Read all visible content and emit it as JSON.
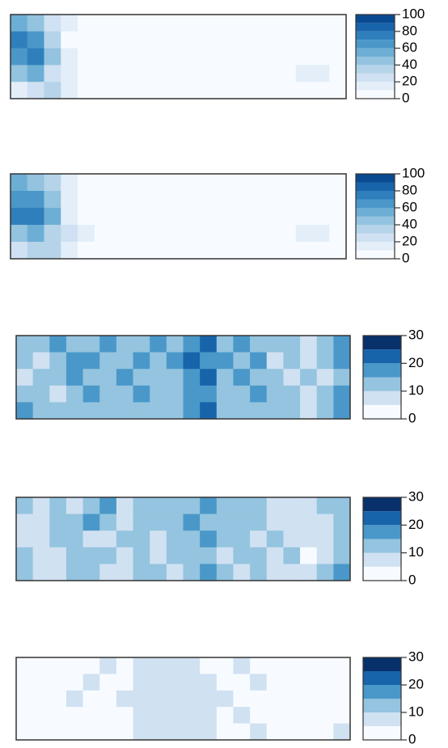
{
  "chart_data": [
    {
      "type": "raster",
      "zlim": [
        0,
        100
      ],
      "zticks": [
        0,
        20,
        40,
        60,
        80,
        100
      ],
      "breaks": [
        0,
        10,
        20,
        30,
        40,
        50,
        60,
        70,
        80,
        90,
        100
      ],
      "colors": [
        "#f7fbff",
        "#e3eef9",
        "#cfe1f2",
        "#b5d4e9",
        "#93c3df",
        "#6daed5",
        "#4b97c9",
        "#2f7fbc",
        "#1864aa",
        "#0a4a90"
      ],
      "z": [
        [
          55,
          40,
          25,
          10,
          4,
          2,
          2,
          2,
          1,
          1,
          1,
          1,
          1,
          2,
          6,
          3,
          2,
          2,
          3,
          2
        ],
        [
          70,
          60,
          30,
          8,
          5,
          3,
          2,
          2,
          1,
          1,
          1,
          1,
          2,
          2,
          3,
          2,
          2,
          3,
          4,
          2
        ],
        [
          65,
          75,
          45,
          12,
          6,
          4,
          3,
          2,
          2,
          1,
          1,
          2,
          2,
          2,
          2,
          2,
          3,
          4,
          6,
          3
        ],
        [
          40,
          50,
          25,
          15,
          8,
          5,
          4,
          3,
          2,
          2,
          2,
          2,
          2,
          2,
          2,
          3,
          4,
          12,
          10,
          4
        ],
        [
          15,
          20,
          30,
          10,
          6,
          4,
          3,
          2,
          2,
          1,
          1,
          1,
          2,
          2,
          2,
          2,
          3,
          6,
          8,
          3
        ]
      ]
    },
    {
      "type": "raster",
      "zlim": [
        0,
        100
      ],
      "zticks": [
        0,
        20,
        40,
        60,
        80,
        100
      ],
      "breaks": [
        0,
        10,
        20,
        30,
        40,
        50,
        60,
        70,
        80,
        90,
        100
      ],
      "colors": [
        "#f7fbff",
        "#e3eef9",
        "#cfe1f2",
        "#b5d4e9",
        "#93c3df",
        "#6daed5",
        "#4b97c9",
        "#2f7fbc",
        "#1864aa",
        "#0a4a90"
      ],
      "z": [
        [
          50,
          45,
          30,
          12,
          5,
          3,
          2,
          2,
          1,
          1,
          1,
          1,
          2,
          3,
          8,
          4,
          2,
          2,
          3,
          2
        ],
        [
          65,
          60,
          40,
          15,
          6,
          3,
          2,
          2,
          2,
          1,
          1,
          2,
          2,
          2,
          4,
          3,
          2,
          4,
          5,
          3
        ],
        [
          70,
          72,
          55,
          18,
          8,
          5,
          3,
          3,
          2,
          2,
          1,
          2,
          2,
          2,
          3,
          2,
          3,
          5,
          7,
          4
        ],
        [
          45,
          55,
          35,
          20,
          10,
          6,
          4,
          3,
          3,
          2,
          2,
          2,
          2,
          3,
          3,
          3,
          5,
          14,
          12,
          5
        ],
        [
          20,
          30,
          35,
          12,
          7,
          5,
          3,
          3,
          2,
          2,
          1,
          2,
          2,
          2,
          3,
          3,
          4,
          7,
          9,
          4
        ]
      ]
    },
    {
      "type": "raster",
      "zlim": [
        0,
        30
      ],
      "zticks": [
        0,
        10,
        20,
        30
      ],
      "breaks": [
        0,
        5,
        10,
        15,
        20,
        25,
        30
      ],
      "colors": [
        "#f7fbff",
        "#d0e1f2",
        "#94c4df",
        "#4a98c9",
        "#1764ab",
        "#08306b"
      ],
      "z": [
        [
          14,
          12,
          15,
          11,
          13,
          17,
          12,
          14,
          16,
          13,
          18,
          20,
          14,
          15,
          13,
          12,
          10,
          8,
          13,
          16
        ],
        [
          12,
          9,
          13,
          15,
          18,
          14,
          11,
          16,
          13,
          15,
          22,
          16,
          17,
          13,
          15,
          9,
          12,
          7,
          11,
          15
        ],
        [
          8,
          11,
          14,
          17,
          12,
          10,
          16,
          13,
          12,
          14,
          16,
          24,
          14,
          16,
          12,
          13,
          8,
          11,
          9,
          14
        ],
        [
          13,
          10,
          9,
          14,
          16,
          13,
          12,
          15,
          11,
          13,
          15,
          18,
          12,
          14,
          16,
          11,
          13,
          6,
          10,
          17
        ],
        [
          15,
          12,
          11,
          13,
          14,
          12,
          10,
          14,
          13,
          12,
          17,
          22,
          13,
          12,
          14,
          10,
          12,
          9,
          14,
          19
        ]
      ]
    },
    {
      "type": "raster",
      "zlim": [
        0,
        30
      ],
      "zticks": [
        0,
        10,
        20,
        30
      ],
      "breaks": [
        0,
        5,
        10,
        15,
        20,
        25,
        30
      ],
      "colors": [
        "#f7fbff",
        "#d0e1f2",
        "#94c4df",
        "#4a98c9",
        "#1764ab",
        "#08306b"
      ],
      "z": [
        [
          11,
          9,
          12,
          8,
          10,
          15,
          9,
          11,
          13,
          10,
          14,
          16,
          11,
          12,
          10,
          9,
          8,
          6,
          10,
          13
        ],
        [
          9,
          7,
          10,
          12,
          15,
          11,
          8,
          13,
          10,
          12,
          17,
          12,
          13,
          10,
          12,
          7,
          9,
          5,
          8,
          12
        ],
        [
          6,
          8,
          11,
          14,
          9,
          8,
          13,
          10,
          9,
          11,
          12,
          19,
          11,
          12,
          9,
          10,
          6,
          8,
          7,
          11
        ],
        [
          10,
          8,
          7,
          11,
          13,
          10,
          9,
          12,
          8,
          10,
          12,
          14,
          9,
          11,
          12,
          8,
          10,
          4,
          8,
          14
        ],
        [
          12,
          9,
          8,
          10,
          11,
          9,
          8,
          11,
          10,
          9,
          13,
          17,
          10,
          9,
          11,
          8,
          9,
          7,
          11,
          16
        ]
      ]
    },
    {
      "type": "raster",
      "zlim": [
        0,
        30
      ],
      "zticks": [
        0,
        10,
        20,
        30
      ],
      "breaks": [
        0,
        5,
        10,
        15,
        20,
        25,
        30
      ],
      "colors": [
        "#f7fbff",
        "#d0e1f2",
        "#94c4df",
        "#4a98c9",
        "#1764ab",
        "#08306b"
      ],
      "z": [
        [
          3,
          2,
          4,
          2,
          3,
          5,
          4,
          6,
          7,
          5,
          6,
          4,
          3,
          5,
          4,
          3,
          2,
          2,
          3,
          4
        ],
        [
          2,
          3,
          2,
          4,
          5,
          3,
          4,
          7,
          8,
          6,
          5,
          6,
          4,
          3,
          5,
          2,
          3,
          2,
          2,
          3
        ],
        [
          2,
          2,
          3,
          5,
          3,
          2,
          5,
          6,
          9,
          7,
          6,
          8,
          5,
          4,
          3,
          4,
          2,
          3,
          2,
          3
        ],
        [
          3,
          2,
          2,
          3,
          4,
          3,
          4,
          5,
          7,
          8,
          5,
          6,
          4,
          5,
          4,
          3,
          3,
          2,
          3,
          4
        ],
        [
          4,
          3,
          2,
          3,
          3,
          2,
          3,
          6,
          6,
          7,
          8,
          5,
          3,
          4,
          5,
          3,
          2,
          3,
          4,
          5
        ]
      ]
    }
  ]
}
